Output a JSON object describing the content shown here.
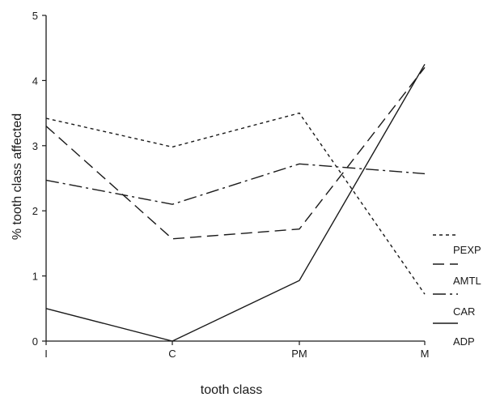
{
  "chart_data": {
    "type": "line",
    "title": "",
    "xlabel": "tooth class",
    "ylabel": "% tooth class affected",
    "categories": [
      "I",
      "C",
      "PM",
      "M"
    ],
    "ylim": [
      0,
      5
    ],
    "yticks": [
      0,
      1,
      2,
      3,
      4,
      5
    ],
    "grid": false,
    "legend_position": "right",
    "series": [
      {
        "name": "PEXP",
        "style": "short-dash",
        "values": [
          3.42,
          2.98,
          3.5,
          0.72
        ]
      },
      {
        "name": "AMTL",
        "style": "long-dash",
        "values": [
          3.3,
          1.57,
          1.72,
          4.2
        ]
      },
      {
        "name": "CAR",
        "style": "dash-dot",
        "values": [
          2.47,
          2.1,
          2.72,
          2.57
        ]
      },
      {
        "name": "ADP",
        "style": "solid",
        "values": [
          0.5,
          0.0,
          0.93,
          4.25
        ]
      }
    ],
    "colors": {
      "line": "#1a1a1a",
      "axis": "#1a1a1a",
      "background": "#ffffff"
    }
  }
}
